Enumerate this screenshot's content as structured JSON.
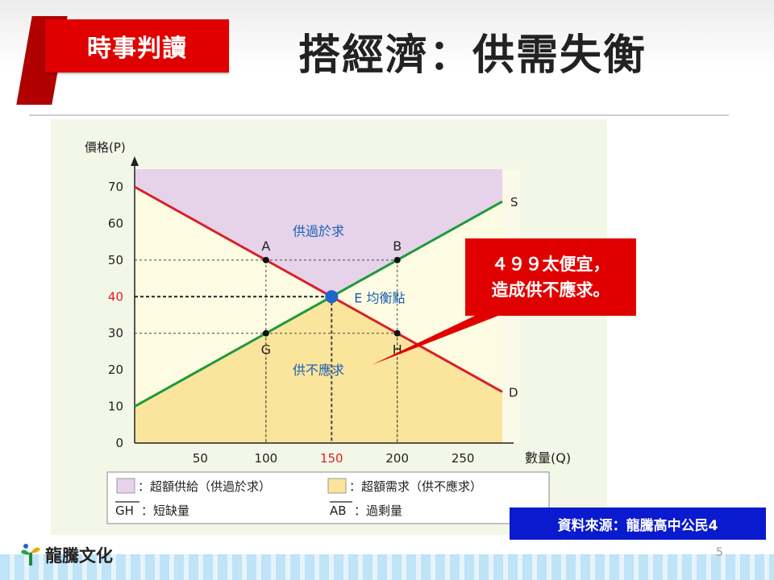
{
  "header": {
    "tag_label": "時事判讀",
    "title": "搭經濟：供需失衡"
  },
  "callout": {
    "line1": "４９９太便宜，",
    "line2": "造成供不應求。"
  },
  "source_label": "資料來源：龍騰高中公民4",
  "logo_text": "龍騰文化",
  "page_number": "5",
  "colors": {
    "supply_line": "#1e9a3c",
    "demand_line": "#d8202a",
    "surplus_area": "#e6d3ea",
    "shortage_area": "#fbe59c",
    "equilibrium_point": "#1f66c8",
    "highlight_text": "#e02020",
    "label_text": "#1a5fb4"
  },
  "chart_data": {
    "type": "line",
    "ylabel": "價格(P)",
    "xlabel": "數量(Q)",
    "xlim": [
      0,
      280
    ],
    "ylim": [
      0,
      70
    ],
    "x_ticks": [
      50,
      100,
      150,
      200,
      250
    ],
    "y_ticks": [
      0,
      10,
      20,
      30,
      40,
      50,
      60,
      70
    ],
    "highlight_x_tick": 150,
    "highlight_y_tick": 40,
    "series": [
      {
        "name": "S",
        "x": [
          0,
          280
        ],
        "y": [
          10,
          66
        ]
      },
      {
        "name": "D",
        "x": [
          0,
          280
        ],
        "y": [
          70,
          14
        ]
      }
    ],
    "points": [
      {
        "label": "A",
        "x": 100,
        "y": 50
      },
      {
        "label": "B",
        "x": 200,
        "y": 50
      },
      {
        "label": "G",
        "x": 100,
        "y": 30
      },
      {
        "label": "H",
        "x": 200,
        "y": 30
      },
      {
        "label": "E 均衡點",
        "x": 150,
        "y": 40
      }
    ],
    "annotations": {
      "surplus": "供過於求",
      "shortage": "供不應求"
    },
    "legend": [
      {
        "swatch": "surplus",
        "text": "：超額供給（供過於求）"
      },
      {
        "swatch": "shortage",
        "text": "：超額需求（供不應求）"
      },
      {
        "symbol": "GH",
        "text": "：短缺量"
      },
      {
        "symbol": "AB",
        "text": "：過剩量"
      }
    ]
  }
}
